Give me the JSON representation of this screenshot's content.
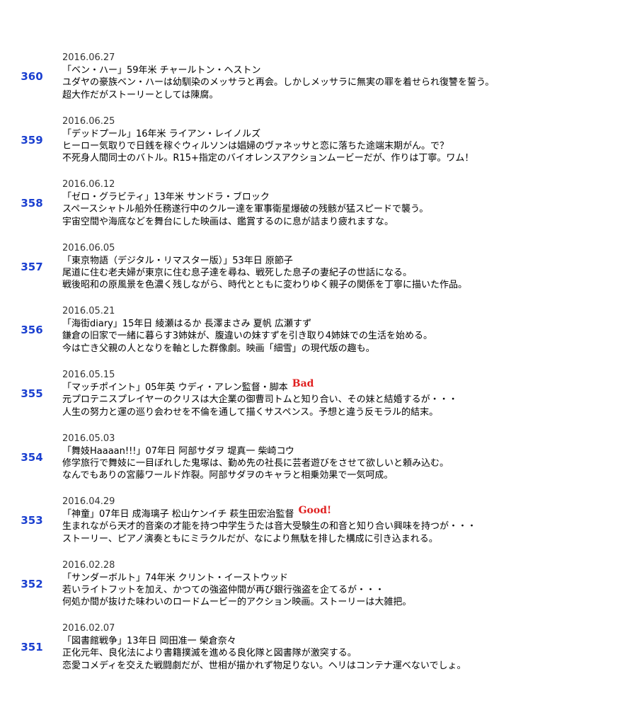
{
  "entries": [
    {
      "number": "360",
      "date": "2016.06.27",
      "title": "「ベン・ハー」59年米 チャールトン・ヘストン",
      "lines": [
        "ユダヤの豪族ベン・ハーは幼馴染のメッサラと再会。しかしメッサラに無実の罪を着せられ復讐を誓う。",
        "超大作だがストーリーとしては陳腐。"
      ]
    },
    {
      "number": "359",
      "date": "2016.06.25",
      "title": "「デッドプール」16年米 ライアン・レイノルズ",
      "lines": [
        "ヒーロー気取りで日銭を稼ぐウィルソンは娼婦のヴァネッサと恋に落ちた途端末期がん。で？",
        "不死身人間同士のバトル。R15+指定のバイオレンスアクションムービーだが、作りは丁寧。ワム！"
      ]
    },
    {
      "number": "358",
      "date": "2016.06.12",
      "title": "「ゼロ・グラビティ」13年米 サンドラ・ブロック",
      "lines": [
        "スペースシャトル船外任務遂行中のクルー達を軍事衛星爆破の残骸が猛スピードで襲う。",
        "宇宙空間や海底などを舞台にした映画は、鑑賞するのに息が詰まり疲れますな。"
      ]
    },
    {
      "number": "357",
      "date": "2016.06.05",
      "title": "「東京物語（デジタル・リマスター版）」53年日 原節子",
      "lines": [
        "尾道に住む老夫婦が東京に住む息子達を尋ね、戦死した息子の妻紀子の世話になる。",
        "戦後昭和の原風景を色濃く残しながら、時代とともに変わりゆく親子の関係を丁寧に描いた作品。"
      ]
    },
    {
      "number": "356",
      "date": "2016.05.21",
      "title": "「海街diary」15年日 綾瀬はるか 長澤まさみ 夏帆 広瀬すず",
      "lines": [
        "鎌倉の旧家で一緒に暮らす3姉妹が、腹違いの妹すずを引き取り4姉妹での生活を始める。",
        "今は亡き父親の人となりを軸とした群像劇。映画「細雪」の現代版の趣も。"
      ]
    },
    {
      "number": "355",
      "date": "2016.05.15",
      "title": "「マッチポイント」05年英 ウディ・アレン監督・脚本",
      "badge": "Bad",
      "lines": [
        "元プロテニスプレイヤーのクリスは大企業の御曹司トムと知り合い、その妹と結婚するが・・・",
        "人生の努力と運の巡り会わせを不倫を通して描くサスペンス。予想と違う反モラル的結末。"
      ]
    },
    {
      "number": "354",
      "date": "2016.05.03",
      "title": "「舞妓Haaaan!!!」07年日 阿部サダヲ 堤真一 柴崎コウ",
      "lines": [
        "修学旅行で舞妓に一目ぼれした鬼塚は、勤め先の社長に芸者遊びをさせて欲しいと頼み込む。",
        "なんでもありの宮藤ワールド炸裂。阿部サダヲのキャラと相乗効果で一気呵成。"
      ]
    },
    {
      "number": "353",
      "date": "2016.04.29",
      "title": "「神童」07年日 成海璃子 松山ケンイチ 萩生田宏治監督",
      "badge": "Good!",
      "lines": [
        "生まれながら天才的音楽の才能を持つ中学生うたは音大受験生の和音と知り合い興味を持つが・・・",
        "ストーリー、ピアノ演奏ともにミラクルだが、なにより無駄を排した構成に引き込まれる。"
      ]
    },
    {
      "number": "352",
      "date": "2016.02.28",
      "title": "「サンダーボルト」74年米 クリント・イーストウッド",
      "lines": [
        "若いライトフットを加え、かつての強盗仲間が再び銀行強盗を企てるが・・・",
        "何処か間が抜けた味わいのロードムービー的アクション映画。ストーリーは大雑把。"
      ]
    },
    {
      "number": "351",
      "date": "2016.02.07",
      "title": "「図書館戦争」13年日 岡田准一 榮倉奈々",
      "lines": [
        "正化元年、良化法により書籍撲滅を進める良化隊と図書隊が激突する。",
        "恋愛コメディを交えた戦闘劇だが、世相が描かれず物足りない。ヘリはコンテナ運べないでしょ。"
      ]
    }
  ]
}
